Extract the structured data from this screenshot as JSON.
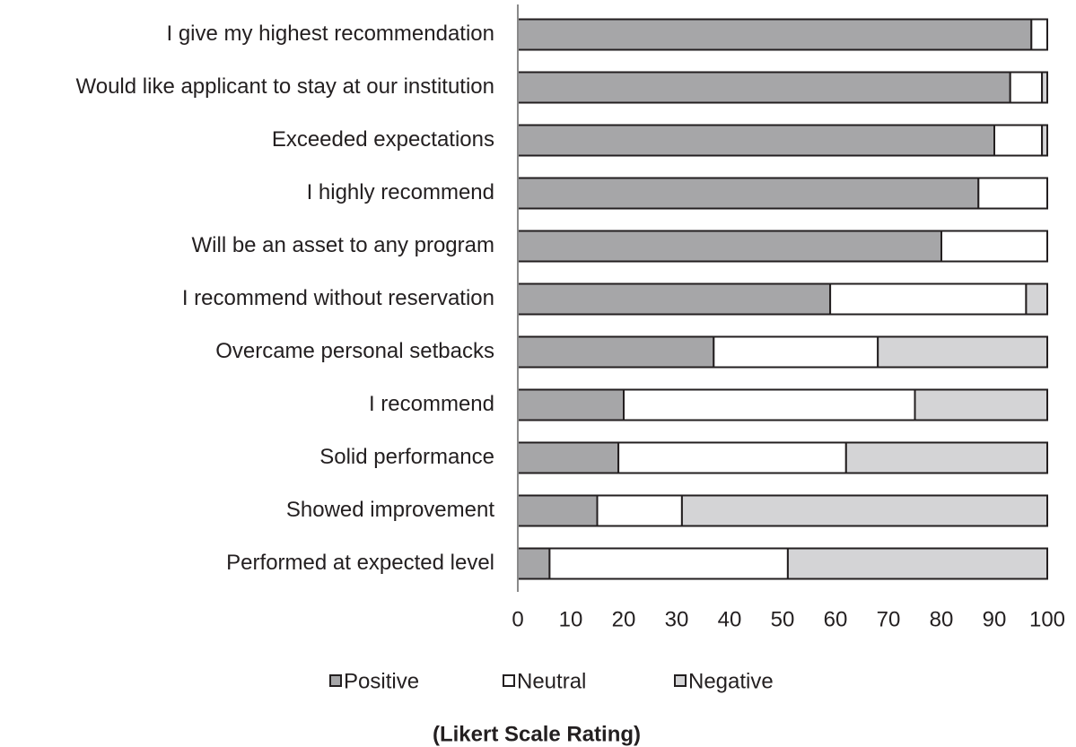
{
  "chart_data": {
    "type": "stacked_barh",
    "xlabel": "(Likert Scale Rating)",
    "categories": [
      "I give my highest recommendation",
      "Would like applicant to stay at our institution",
      "Exceeded expectations",
      "I highly recommend",
      "Will be an asset to any program",
      "I recommend without reservation",
      "Overcame personal setbacks",
      "I recommend",
      "Solid performance",
      "Showed improvement",
      "Performed at expected level"
    ],
    "series": [
      {
        "name": "Positive",
        "color": "#a6a6a8",
        "values": [
          97,
          93,
          90,
          87,
          80,
          59,
          37,
          20,
          19,
          15,
          6
        ]
      },
      {
        "name": "Neutral",
        "color": "#ffffff",
        "values": [
          3,
          6,
          9,
          13,
          20,
          37,
          31,
          55,
          43,
          16,
          45
        ]
      },
      {
        "name": "Negative",
        "color": "#d4d4d6",
        "values": [
          0,
          1,
          1,
          0,
          0,
          4,
          32,
          25,
          38,
          69,
          49
        ]
      }
    ],
    "xlim": [
      0,
      100
    ],
    "xticks": [
      0,
      10,
      20,
      30,
      40,
      50,
      60,
      70,
      80,
      90,
      100
    ],
    "grid": false,
    "legend": "bottom"
  }
}
